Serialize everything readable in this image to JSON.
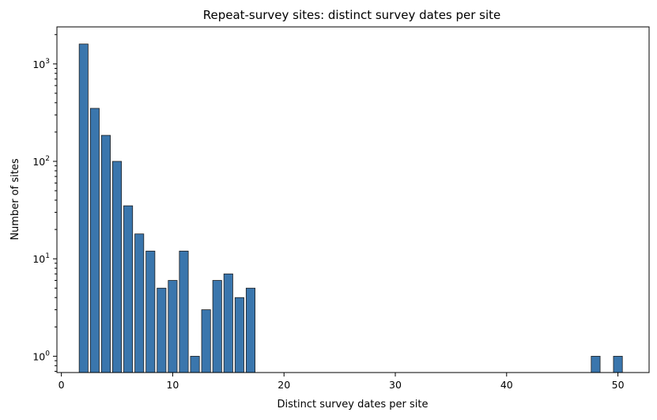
{
  "chart_data": {
    "type": "bar",
    "title": "Repeat-survey sites: distinct survey dates per site",
    "xlabel": "Distinct survey dates per site",
    "ylabel": "Number of sites",
    "yscale": "log",
    "xlim": [
      -0.4,
      52.8
    ],
    "ylim": [
      0.68,
      2400
    ],
    "x_ticks": [
      0,
      10,
      20,
      30,
      40,
      50
    ],
    "y_ticks": [
      {
        "value": 1,
        "base": "10",
        "exp": "0"
      },
      {
        "value": 10,
        "base": "10",
        "exp": "1"
      },
      {
        "value": 100,
        "base": "10",
        "exp": "2"
      },
      {
        "value": 1000,
        "base": "10",
        "exp": "3"
      }
    ],
    "grid": false,
    "bar_color": "#3a76ad",
    "x": [
      2,
      3,
      4,
      5,
      6,
      7,
      8,
      9,
      10,
      11,
      12,
      13,
      14,
      15,
      16,
      17,
      48,
      50
    ],
    "values": [
      1600,
      350,
      185,
      100,
      35,
      18,
      12,
      5,
      6,
      12,
      1,
      3,
      6,
      7,
      4,
      5,
      1,
      1
    ]
  }
}
